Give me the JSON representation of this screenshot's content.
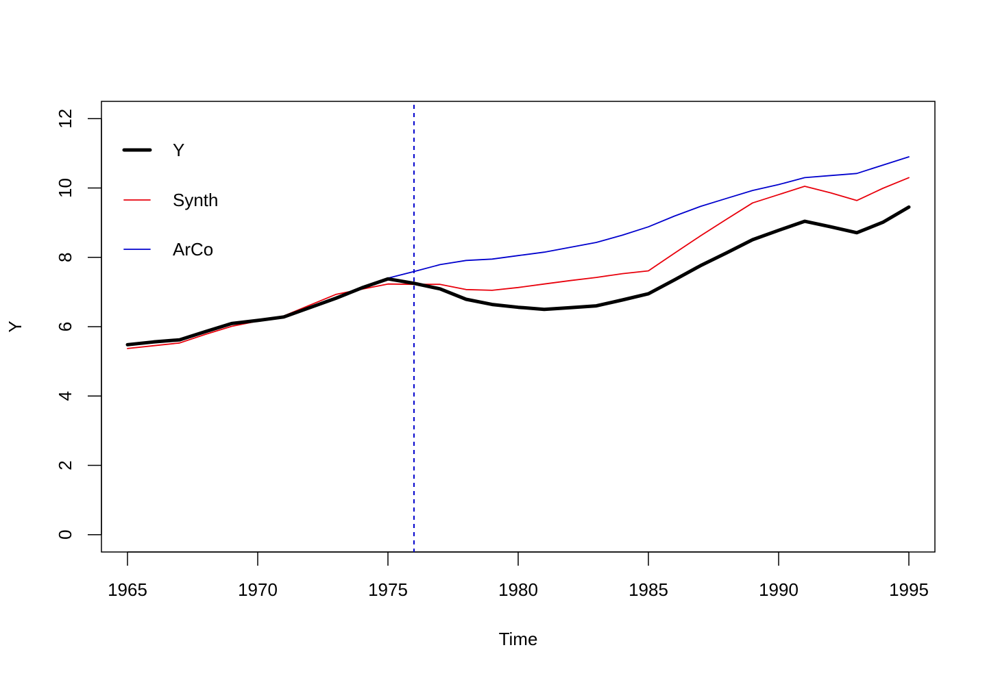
{
  "chart_data": {
    "type": "line",
    "title": "",
    "xlabel": "Time",
    "ylabel": "Y",
    "xlim": [
      1964,
      1996
    ],
    "ylim": [
      -0.5,
      12.5
    ],
    "x_ticks": [
      1965,
      1970,
      1975,
      1980,
      1985,
      1990,
      1995
    ],
    "y_ticks": [
      0,
      2,
      4,
      6,
      8,
      10,
      12
    ],
    "grid": false,
    "legend_position": "top-left",
    "intervention_line": {
      "x": 1976,
      "color": "#0000CD",
      "style": "dashed"
    },
    "x": [
      1965,
      1966,
      1967,
      1968,
      1969,
      1970,
      1971,
      1972,
      1973,
      1974,
      1975,
      1976,
      1977,
      1978,
      1979,
      1980,
      1981,
      1982,
      1983,
      1984,
      1985,
      1986,
      1987,
      1988,
      1989,
      1990,
      1991,
      1992,
      1993,
      1994,
      1995
    ],
    "series": [
      {
        "name": "Y",
        "color": "#000000",
        "values": [
          5.48,
          5.56,
          5.62,
          5.86,
          6.09,
          6.18,
          6.28,
          6.55,
          6.82,
          7.12,
          7.38,
          7.25,
          7.09,
          6.79,
          6.64,
          6.56,
          6.5,
          6.55,
          6.6,
          6.77,
          6.95,
          7.35,
          7.76,
          8.13,
          8.51,
          8.78,
          9.04,
          8.88,
          8.71,
          9.01,
          9.45
        ]
      },
      {
        "name": "Synth",
        "color": "#E8000B",
        "values": [
          5.37,
          5.45,
          5.53,
          5.78,
          6.01,
          6.16,
          6.31,
          6.62,
          6.93,
          7.08,
          7.23,
          7.22,
          7.22,
          7.07,
          7.05,
          7.13,
          7.23,
          7.33,
          7.42,
          7.53,
          7.61,
          8.12,
          8.62,
          9.1,
          9.57,
          9.81,
          10.05,
          9.86,
          9.64,
          9.99,
          10.3
        ]
      },
      {
        "name": "ArCo",
        "color": "#0000CD",
        "values": [
          5.46,
          5.54,
          5.6,
          5.84,
          6.07,
          6.16,
          6.26,
          6.53,
          6.8,
          7.1,
          7.4,
          7.59,
          7.79,
          7.91,
          7.95,
          8.05,
          8.15,
          8.29,
          8.43,
          8.64,
          8.88,
          9.19,
          9.47,
          9.7,
          9.93,
          10.1,
          10.3,
          10.36,
          10.42,
          10.66,
          10.9
        ]
      }
    ]
  }
}
